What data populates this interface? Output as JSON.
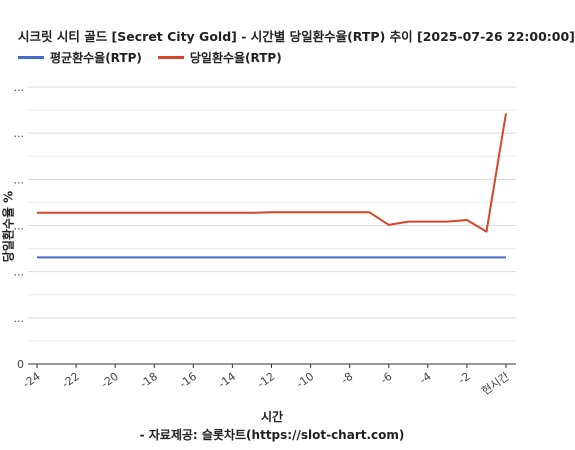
{
  "title": "시크릿 시티 골드 [Secret City Gold] - 시간별 당일환수율(RTP) 추이 [2025-07-26 22:00:00]",
  "source": "- 자료제공: 슬롯차트(https://slot-chart.com)",
  "legend": [
    {
      "label": "평균환수율(RTP)",
      "color": "#3f6fc4"
    },
    {
      "label": "당일환수율(RTP)",
      "color": "#d4462a"
    }
  ],
  "chart_data": {
    "type": "line",
    "xlabel": "시간",
    "ylabel": "당일환수율 %",
    "x": [
      -24,
      -23,
      -22,
      -21,
      -20,
      -19,
      -18,
      -17,
      -16,
      -15,
      -14,
      -13,
      -12,
      -11,
      -10,
      -9,
      -8,
      -7,
      -6,
      -5,
      -4,
      -3,
      -2,
      -1,
      0
    ],
    "x_tick_labels": [
      "-24",
      "-22",
      "-20",
      "-18",
      "-16",
      "-14",
      "-12",
      "-10",
      "-8",
      "-6",
      "-4",
      "-2",
      "현시간"
    ],
    "y_tick_labels": [
      "0",
      "...",
      "...",
      "...",
      "...",
      "...",
      "..."
    ],
    "ylim": [
      0,
      100
    ],
    "grid": true,
    "legend_position": "top-left",
    "series": [
      {
        "name": "평균환수율(RTP)",
        "color": "#3f6fc4",
        "values": [
          38.5,
          38.5,
          38.5,
          38.5,
          38.5,
          38.5,
          38.5,
          38.5,
          38.5,
          38.5,
          38.5,
          38.5,
          38.5,
          38.5,
          38.5,
          38.5,
          38.5,
          38.5,
          38.5,
          38.5,
          38.5,
          38.5,
          38.5,
          38.5,
          38.5
        ]
      },
      {
        "name": "당일환수율(RTP)",
        "color": "#d4462a",
        "values": [
          54.6,
          54.6,
          54.6,
          54.6,
          54.6,
          54.6,
          54.6,
          54.6,
          54.6,
          54.6,
          54.6,
          54.6,
          54.8,
          54.8,
          54.8,
          54.8,
          54.8,
          54.8,
          50.2,
          51.4,
          51.4,
          51.4,
          52.0,
          47.8,
          90.5
        ]
      }
    ]
  }
}
